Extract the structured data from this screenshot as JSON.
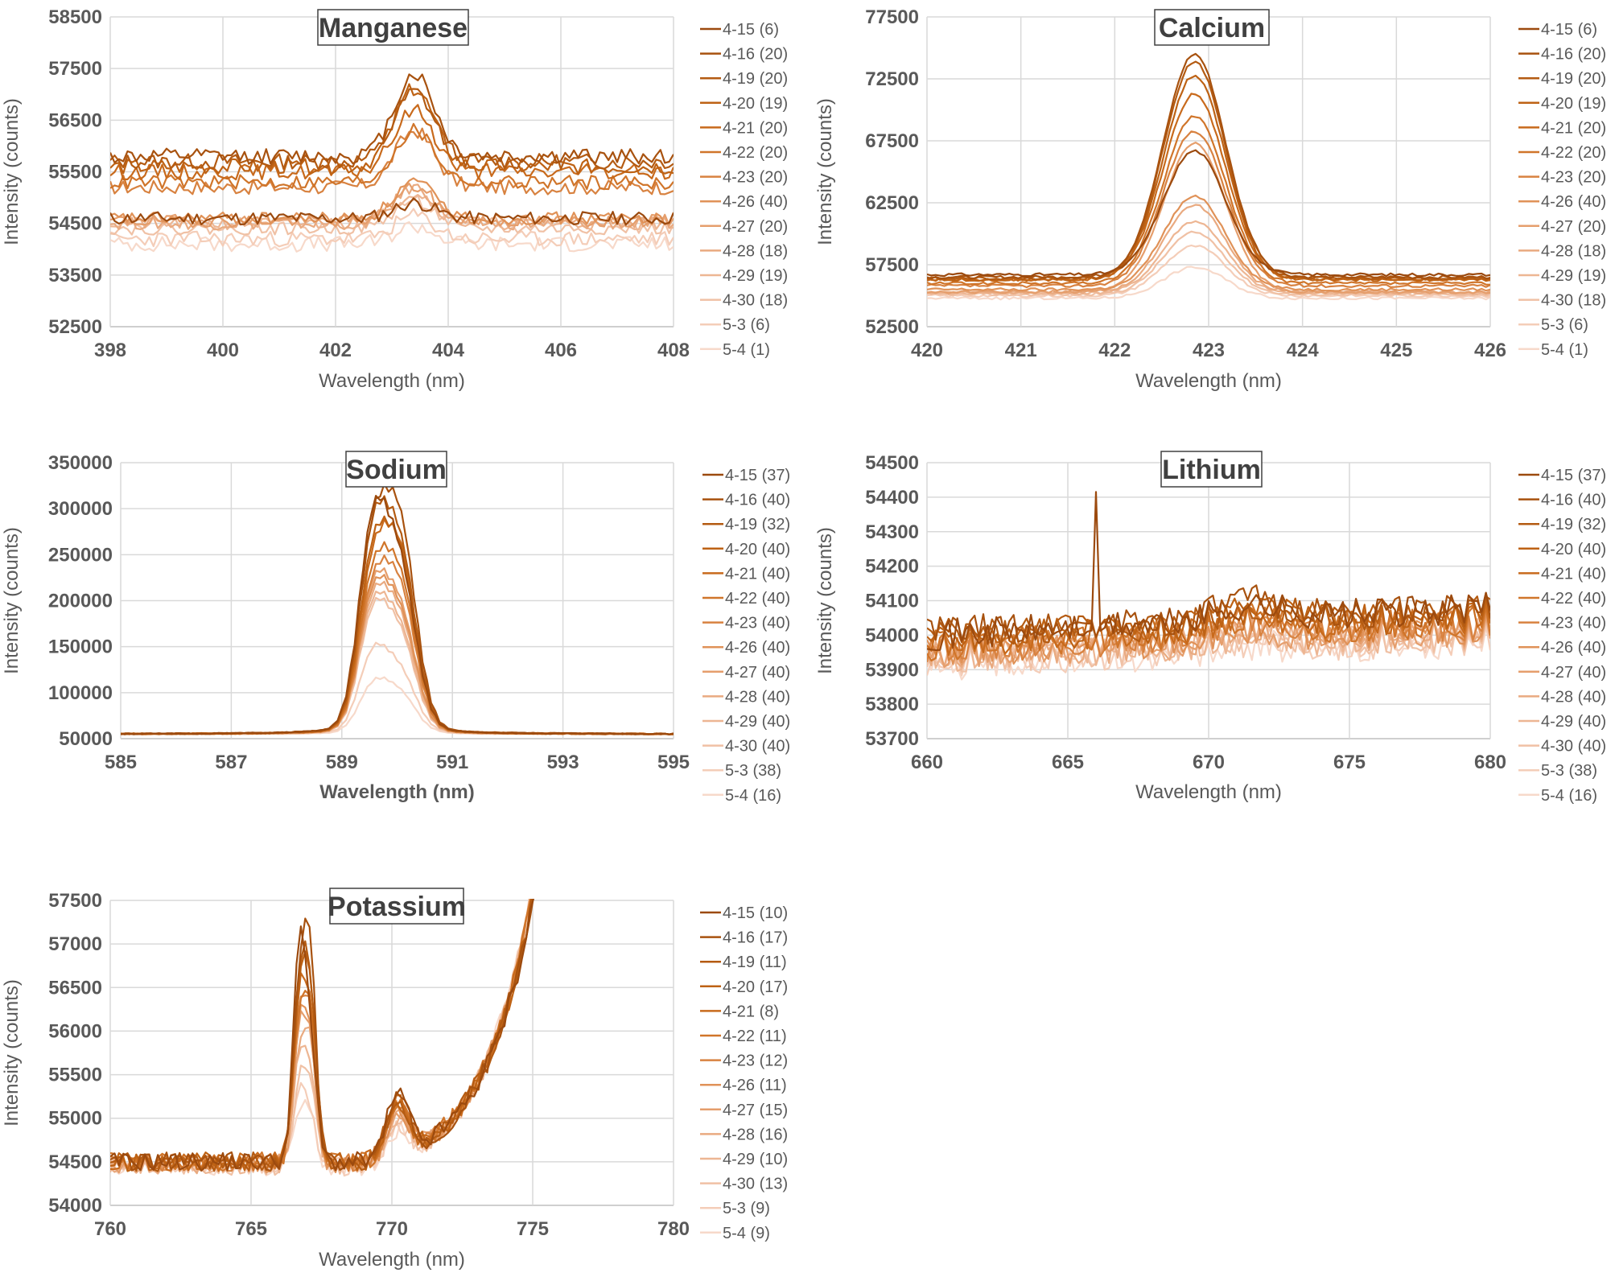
{
  "chart_data": [
    {
      "type": "line",
      "title": "Manganese",
      "xlabel": "Wavelength (nm)",
      "ylabel": "Intensity (counts)",
      "xlim": [
        398,
        408
      ],
      "ylim": [
        52500,
        58500
      ],
      "xticks": [
        398,
        400,
        402,
        404,
        406,
        408
      ],
      "yticks": [
        52500,
        53500,
        54500,
        55500,
        56500,
        57500,
        58500
      ],
      "peaks": [
        {
          "center": 403.4,
          "width": 0.35
        }
      ],
      "series": [
        {
          "name": "4-15 (6)",
          "color": "#9C4A0E",
          "baseline": 54600,
          "peak": [
            300
          ],
          "noise": 130,
          "seed": 11
        },
        {
          "name": "4-16 (20)",
          "color": "#A8520F",
          "baseline": 55800,
          "peak": [
            1600
          ],
          "noise": 150,
          "seed": 12
        },
        {
          "name": "4-19 (20)",
          "color": "#B45B12",
          "baseline": 55700,
          "peak": [
            1350
          ],
          "noise": 150,
          "seed": 13
        },
        {
          "name": "4-20 (19)",
          "color": "#BE6214",
          "baseline": 55600,
          "peak": [
            1500
          ],
          "noise": 150,
          "seed": 14
        },
        {
          "name": "4-21 (20)",
          "color": "#C86A1C",
          "baseline": 55500,
          "peak": [
            1200
          ],
          "noise": 150,
          "seed": 15
        },
        {
          "name": "4-22 (20)",
          "color": "#D0752A",
          "baseline": 55300,
          "peak": [
            1000
          ],
          "noise": 140,
          "seed": 16
        },
        {
          "name": "4-23 (20)",
          "color": "#D88240",
          "baseline": 55200,
          "peak": [
            1100
          ],
          "noise": 140,
          "seed": 17
        },
        {
          "name": "4-26 (40)",
          "color": "#E09258",
          "baseline": 54600,
          "peak": [
            700
          ],
          "noise": 120,
          "seed": 18
        },
        {
          "name": "4-27 (20)",
          "color": "#E59E6C",
          "baseline": 54550,
          "peak": [
            650
          ],
          "noise": 120,
          "seed": 19
        },
        {
          "name": "4-28 (18)",
          "color": "#E9AA80",
          "baseline": 54500,
          "peak": [
            700
          ],
          "noise": 120,
          "seed": 20
        },
        {
          "name": "4-29 (19)",
          "color": "#EDB693",
          "baseline": 54500,
          "peak": [
            600
          ],
          "noise": 120,
          "seed": 21
        },
        {
          "name": "4-30 (18)",
          "color": "#F0C1A5",
          "baseline": 54400,
          "peak": [
            550
          ],
          "noise": 120,
          "seed": 22
        },
        {
          "name": "5-3 (6)",
          "color": "#F4CDB8",
          "baseline": 54200,
          "peak": [
            450
          ],
          "noise": 150,
          "seed": 23
        },
        {
          "name": "5-4 (1)",
          "color": "#F7D9CA",
          "baseline": 54100,
          "peak": [
            350
          ],
          "noise": 150,
          "seed": 24
        }
      ]
    },
    {
      "type": "line",
      "title": "Calcium",
      "xlabel": "Wavelength (nm)",
      "ylabel": "Intensity (counts)",
      "xlim": [
        420,
        426
      ],
      "ylim": [
        52500,
        77500
      ],
      "xticks": [
        420,
        421,
        422,
        423,
        424,
        425,
        426
      ],
      "yticks": [
        52500,
        57500,
        62500,
        67500,
        72500,
        77500
      ],
      "peaks": [
        {
          "center": 422.85,
          "width": 0.33
        }
      ],
      "series": [
        {
          "name": "4-15 (6)",
          "color": "#9C4A0E",
          "baseline": 56700,
          "peak": [
            10000
          ],
          "noise": 120,
          "seed": 31
        },
        {
          "name": "4-16 (20)",
          "color": "#A8520F",
          "baseline": 56500,
          "peak": [
            18000
          ],
          "noise": 120,
          "seed": 32
        },
        {
          "name": "4-19 (20)",
          "color": "#B45B12",
          "baseline": 56400,
          "peak": [
            17500
          ],
          "noise": 120,
          "seed": 33
        },
        {
          "name": "4-20 (19)",
          "color": "#BE6214",
          "baseline": 56300,
          "peak": [
            16500
          ],
          "noise": 120,
          "seed": 34
        },
        {
          "name": "4-21 (20)",
          "color": "#C86A1C",
          "baseline": 56300,
          "peak": [
            15000
          ],
          "noise": 120,
          "seed": 35
        },
        {
          "name": "4-22 (20)",
          "color": "#D0752A",
          "baseline": 56000,
          "peak": [
            13500
          ],
          "noise": 120,
          "seed": 36
        },
        {
          "name": "4-23 (20)",
          "color": "#D88240",
          "baseline": 55800,
          "peak": [
            12500
          ],
          "noise": 120,
          "seed": 37
        },
        {
          "name": "4-26 (40)",
          "color": "#E09258",
          "baseline": 55500,
          "peak": [
            7500
          ],
          "noise": 110,
          "seed": 38
        },
        {
          "name": "4-27 (20)",
          "color": "#E59E6C",
          "baseline": 55300,
          "peak": [
            12000
          ],
          "noise": 110,
          "seed": 39
        },
        {
          "name": "4-28 (18)",
          "color": "#E9AA80",
          "baseline": 55300,
          "peak": [
            7000
          ],
          "noise": 110,
          "seed": 40
        },
        {
          "name": "4-29 (19)",
          "color": "#EDB693",
          "baseline": 55200,
          "peak": [
            5800
          ],
          "noise": 110,
          "seed": 41
        },
        {
          "name": "4-30 (18)",
          "color": "#F0C1A5",
          "baseline": 55100,
          "peak": [
            5000
          ],
          "noise": 110,
          "seed": 42
        },
        {
          "name": "5-3 (6)",
          "color": "#F4CDB8",
          "baseline": 55000,
          "peak": [
            4000
          ],
          "noise": 110,
          "seed": 43
        },
        {
          "name": "5-4 (1)",
          "color": "#F7D9CA",
          "baseline": 54800,
          "peak": [
            2500
          ],
          "noise": 110,
          "seed": 44
        }
      ]
    },
    {
      "type": "line",
      "title": "Sodium",
      "xlabel": "Wavelength (nm)",
      "ylabel": "Intensity (counts)",
      "xlim": [
        585,
        595
      ],
      "ylim": [
        50000,
        350000
      ],
      "xticks": [
        585,
        587,
        589,
        591,
        593,
        595
      ],
      "yticks": [
        50000,
        100000,
        150000,
        200000,
        250000,
        300000,
        350000
      ],
      "peaks": [
        {
          "center": 589.55,
          "width": 0.25
        },
        {
          "center": 590.05,
          "width": 0.28
        }
      ],
      "series": [
        {
          "name": "4-15 (37)",
          "color": "#9C4A0E",
          "baseline": 55000,
          "peak": [
            195000,
            160000
          ],
          "noise": 600,
          "seed": 51
        },
        {
          "name": "4-16 (40)",
          "color": "#A8520F",
          "baseline": 55000,
          "peak": [
            175000,
            205000
          ],
          "noise": 600,
          "seed": 52
        },
        {
          "name": "4-19 (32)",
          "color": "#B45B12",
          "baseline": 55000,
          "peak": [
            180000,
            180000
          ],
          "noise": 600,
          "seed": 53
        },
        {
          "name": "4-20 (40)",
          "color": "#BE6214",
          "baseline": 55000,
          "peak": [
            160000,
            170000
          ],
          "noise": 600,
          "seed": 54
        },
        {
          "name": "4-21 (40)",
          "color": "#C86A1C",
          "baseline": 55000,
          "peak": [
            150000,
            175000
          ],
          "noise": 600,
          "seed": 55
        },
        {
          "name": "4-22 (40)",
          "color": "#D0752A",
          "baseline": 55000,
          "peak": [
            140000,
            150000
          ],
          "noise": 600,
          "seed": 56
        },
        {
          "name": "4-23 (40)",
          "color": "#D88240",
          "baseline": 55000,
          "peak": [
            130000,
            140000
          ],
          "noise": 600,
          "seed": 57
        },
        {
          "name": "4-26 (40)",
          "color": "#E09258",
          "baseline": 55000,
          "peak": [
            125000,
            115000
          ],
          "noise": 600,
          "seed": 58
        },
        {
          "name": "4-27 (40)",
          "color": "#E59E6C",
          "baseline": 55000,
          "peak": [
            130000,
            120000
          ],
          "noise": 600,
          "seed": 59
        },
        {
          "name": "4-28 (40)",
          "color": "#E9AA80",
          "baseline": 55000,
          "peak": [
            120000,
            110000
          ],
          "noise": 600,
          "seed": 60
        },
        {
          "name": "4-29 (40)",
          "color": "#EDB693",
          "baseline": 55000,
          "peak": [
            115000,
            100000
          ],
          "noise": 600,
          "seed": 61
        },
        {
          "name": "4-30 (40)",
          "color": "#F0C1A5",
          "baseline": 55000,
          "peak": [
            110000,
            95000
          ],
          "noise": 600,
          "seed": 62
        },
        {
          "name": "5-3 (38)",
          "color": "#F4CDB8",
          "baseline": 55000,
          "peak": [
            75000,
            60000
          ],
          "noise": 600,
          "seed": 63
        },
        {
          "name": "5-4 (16)",
          "color": "#F7D9CA",
          "baseline": 55000,
          "peak": [
            45000,
            40000
          ],
          "noise": 600,
          "seed": 64
        }
      ]
    },
    {
      "type": "line",
      "title": "Lithium",
      "xlabel": "Wavelength (nm)",
      "ylabel": "Intensity (counts)",
      "xlim": [
        660,
        680
      ],
      "ylim": [
        53700,
        54500
      ],
      "xticks": [
        660,
        665,
        670,
        675,
        680
      ],
      "yticks": [
        53700,
        53800,
        53900,
        54000,
        54100,
        54200,
        54300,
        54400,
        54500
      ],
      "peaks": [
        {
          "center": 671.5,
          "width": 1.2
        }
      ],
      "spike": {
        "x": 666,
        "series": 0,
        "value": 54415
      },
      "series": [
        {
          "name": "4-15 (37)",
          "color": "#9C4A0E",
          "baseline": 54000,
          "slope": 80,
          "peak": [
            40
          ],
          "noise": 45,
          "seed": 71
        },
        {
          "name": "4-16 (40)",
          "color": "#A8520F",
          "baseline": 54010,
          "slope": 70,
          "peak": [
            50
          ],
          "noise": 45,
          "seed": 72
        },
        {
          "name": "4-19 (32)",
          "color": "#B45B12",
          "baseline": 54000,
          "slope": 70,
          "peak": [
            40
          ],
          "noise": 45,
          "seed": 73
        },
        {
          "name": "4-20 (40)",
          "color": "#BE6214",
          "baseline": 53990,
          "slope": 70,
          "peak": [
            45
          ],
          "noise": 45,
          "seed": 74
        },
        {
          "name": "4-21 (40)",
          "color": "#C86A1C",
          "baseline": 53980,
          "slope": 70,
          "peak": [
            40
          ],
          "noise": 45,
          "seed": 75
        },
        {
          "name": "4-22 (40)",
          "color": "#D0752A",
          "baseline": 53970,
          "slope": 70,
          "peak": [
            40
          ],
          "noise": 45,
          "seed": 76
        },
        {
          "name": "4-23 (40)",
          "color": "#D88240",
          "baseline": 53960,
          "slope": 70,
          "peak": [
            40
          ],
          "noise": 45,
          "seed": 77
        },
        {
          "name": "4-26 (40)",
          "color": "#E09258",
          "baseline": 53950,
          "slope": 70,
          "peak": [
            30
          ],
          "noise": 45,
          "seed": 78
        },
        {
          "name": "4-27 (40)",
          "color": "#E59E6C",
          "baseline": 53945,
          "slope": 70,
          "peak": [
            30
          ],
          "noise": 45,
          "seed": 79
        },
        {
          "name": "4-28 (40)",
          "color": "#E9AA80",
          "baseline": 53940,
          "slope": 70,
          "peak": [
            30
          ],
          "noise": 45,
          "seed": 80
        },
        {
          "name": "4-29 (40)",
          "color": "#EDB693",
          "baseline": 53935,
          "slope": 70,
          "peak": [
            25
          ],
          "noise": 45,
          "seed": 81
        },
        {
          "name": "4-30 (40)",
          "color": "#F0C1A5",
          "baseline": 53930,
          "slope": 70,
          "peak": [
            25
          ],
          "noise": 45,
          "seed": 82
        },
        {
          "name": "5-3 (38)",
          "color": "#F4CDB8",
          "baseline": 53920,
          "slope": 70,
          "peak": [
            20
          ],
          "noise": 45,
          "seed": 83
        },
        {
          "name": "5-4 (16)",
          "color": "#F7D9CA",
          "baseline": 53910,
          "slope": 70,
          "peak": [
            20
          ],
          "noise": 45,
          "seed": 84
        }
      ]
    },
    {
      "type": "line",
      "title": "Potassium",
      "xlabel": "Wavelength (nm)",
      "ylabel": "Intensity (counts)",
      "xlim": [
        760,
        780
      ],
      "ylim": [
        54000,
        57500
      ],
      "xticks": [
        760,
        765,
        770,
        775,
        780
      ],
      "yticks": [
        54000,
        54500,
        55000,
        55500,
        56000,
        56500,
        57000,
        57500
      ],
      "peaks": [
        {
          "center": 766.7,
          "width": 0.22
        },
        {
          "center": 767.1,
          "width": 0.22
        },
        {
          "center": 770.2,
          "width": 0.4
        }
      ],
      "rise": {
        "start": 769.5,
        "end": 775.6,
        "scale": 1.55,
        "growth": 3200
      },
      "series": [
        {
          "name": "4-15 (10)",
          "color": "#9C4A0E",
          "baseline": 54500,
          "peak": [
            2300,
            1300,
            700
          ],
          "noise": 110,
          "seed": 91
        },
        {
          "name": "4-16 (17)",
          "color": "#A8520F",
          "baseline": 54500,
          "peak": [
            1900,
            2200,
            650
          ],
          "noise": 110,
          "seed": 92
        },
        {
          "name": "4-19 (11)",
          "color": "#B45B12",
          "baseline": 54500,
          "peak": [
            1800,
            1900,
            650
          ],
          "noise": 110,
          "seed": 93
        },
        {
          "name": "4-20 (17)",
          "color": "#BE6214",
          "baseline": 54500,
          "peak": [
            1700,
            1800,
            600
          ],
          "noise": 110,
          "seed": 94
        },
        {
          "name": "4-21 (8)",
          "color": "#C86A1C",
          "baseline": 54500,
          "peak": [
            1600,
            1700,
            600
          ],
          "noise": 110,
          "seed": 95
        },
        {
          "name": "4-22 (11)",
          "color": "#D0752A",
          "baseline": 54500,
          "peak": [
            1500,
            1600,
            600
          ],
          "noise": 110,
          "seed": 96
        },
        {
          "name": "4-23 (12)",
          "color": "#D88240",
          "baseline": 54500,
          "peak": [
            1500,
            1500,
            550
          ],
          "noise": 110,
          "seed": 97
        },
        {
          "name": "4-26 (11)",
          "color": "#E09258",
          "baseline": 54480,
          "peak": [
            1400,
            1400,
            550
          ],
          "noise": 110,
          "seed": 98
        },
        {
          "name": "4-27 (15)",
          "color": "#E59E6C",
          "baseline": 54480,
          "peak": [
            1300,
            1300,
            550
          ],
          "noise": 110,
          "seed": 99
        },
        {
          "name": "4-28 (16)",
          "color": "#E9AA80",
          "baseline": 54470,
          "peak": [
            1200,
            1200,
            500
          ],
          "noise": 110,
          "seed": 100
        },
        {
          "name": "4-29 (10)",
          "color": "#EDB693",
          "baseline": 54460,
          "peak": [
            1100,
            1000,
            500
          ],
          "noise": 110,
          "seed": 101
        },
        {
          "name": "4-30 (13)",
          "color": "#F0C1A5",
          "baseline": 54450,
          "peak": [
            900,
            800,
            450
          ],
          "noise": 110,
          "seed": 102
        },
        {
          "name": "5-3 (9)",
          "color": "#F4CDB8",
          "baseline": 54450,
          "peak": [
            700,
            600,
            400
          ],
          "noise": 110,
          "seed": 103
        },
        {
          "name": "5-4 (9)",
          "color": "#F7D9CA",
          "baseline": 54450,
          "peak": [
            600,
            500,
            350
          ],
          "noise": 110,
          "seed": 104
        }
      ]
    }
  ]
}
